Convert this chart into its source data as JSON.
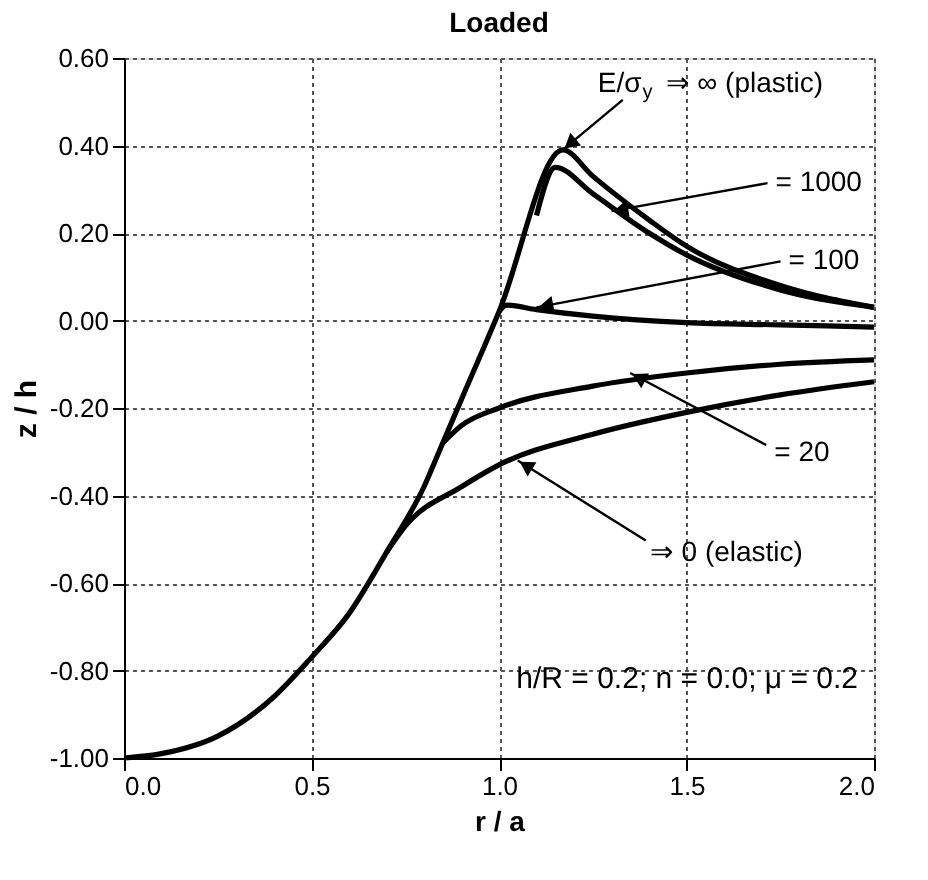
{
  "chart_data": {
    "type": "line",
    "title": "Loaded",
    "xlabel": "r / a",
    "ylabel": "z / h",
    "xlim": [
      0,
      2
    ],
    "ylim": [
      -1,
      0.6
    ],
    "xticks": [
      {
        "value": 0,
        "label": "0.0"
      },
      {
        "value": 0.5,
        "label": "0.5"
      },
      {
        "value": 1,
        "label": "1.0"
      },
      {
        "value": 1.5,
        "label": "1.5"
      },
      {
        "value": 2,
        "label": "2.0"
      }
    ],
    "yticks": [
      {
        "value": -1,
        "label": "-1.00"
      },
      {
        "value": -0.8,
        "label": "-0.80"
      },
      {
        "value": -0.6,
        "label": "-0.60"
      },
      {
        "value": -0.4,
        "label": "-0.40"
      },
      {
        "value": -0.2,
        "label": "-0.20"
      },
      {
        "value": 0,
        "label": "0.00"
      },
      {
        "value": 0.2,
        "label": "0.20"
      },
      {
        "value": 0.4,
        "label": "0.40"
      },
      {
        "value": 0.6,
        "label": "0.60"
      }
    ],
    "grid": true,
    "marker": "none",
    "line_style": "solid",
    "series": [
      {
        "color": "#000000",
        "x": [
          0,
          0.1,
          0.25,
          0.4,
          0.5,
          0.6,
          0.7,
          0.8,
          0.85,
          0.9,
          1.0,
          1.17,
          1.25,
          1.4,
          1.5,
          1.75,
          2.0
        ],
        "values": [
          -1,
          -0.99,
          -0.95,
          -0.86,
          -0.77,
          -0.67,
          -0.53,
          -0.38,
          -0.28,
          -0.18,
          0.02,
          0.39,
          0.33,
          0.23,
          0.17,
          0.08,
          0.03
        ]
      },
      {
        "color": "#000000",
        "x": [
          1.1,
          1.15,
          1.25,
          1.4,
          1.5,
          1.75,
          2.0
        ],
        "values": [
          0.24,
          0.35,
          0.29,
          0.2,
          0.15,
          0.07,
          0.03
        ]
      },
      {
        "color": "#000000",
        "x": [
          1.0,
          1.02,
          1.1,
          1.25,
          1.5,
          1.75,
          2.0
        ],
        "values": [
          0.02,
          0.035,
          0.025,
          0.01,
          -0.005,
          -0.01,
          -0.015
        ]
      },
      {
        "color": "#000000",
        "x": [
          0.85,
          0.9,
          1.0,
          1.25,
          1.5,
          1.75,
          2.0
        ],
        "values": [
          -0.28,
          -0.24,
          -0.2,
          -0.15,
          -0.12,
          -0.1,
          -0.09
        ]
      },
      {
        "color": "#000000",
        "x": [
          0.7,
          0.75,
          0.9,
          1.0,
          1.25,
          1.5,
          1.75,
          2.0
        ],
        "values": [
          -0.53,
          -0.47,
          -0.38,
          -0.33,
          -0.26,
          -0.21,
          -0.17,
          -0.14
        ]
      }
    ],
    "annotations": [
      {
        "text": "E/σ$_{y}$ ⇒ ∞ (plastic)",
        "x": 1.17,
        "y": 0.39
      },
      {
        "text": "= 1000",
        "x": 1.3,
        "y": 0.25
      },
      {
        "text": "= 100",
        "x": 1.1,
        "y": 0.03
      },
      {
        "text": "= 20",
        "x": 1.35,
        "y": -0.12
      },
      {
        "text": "⇒ 0 (elastic)",
        "x": 1.05,
        "y": -0.32
      },
      "h/R = 0.2; n = 0.0; μ = 0.2"
    ]
  }
}
